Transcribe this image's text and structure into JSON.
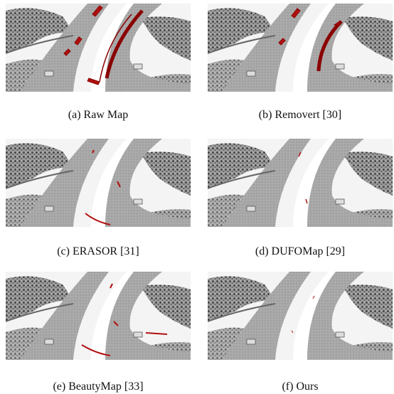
{
  "figure": {
    "panels": [
      {
        "caption": "(a) Raw Map"
      },
      {
        "caption": "(b) Removert [30]"
      },
      {
        "caption": "(c) ERASOR [31]"
      },
      {
        "caption": "(d) DUFOMap [29]"
      },
      {
        "caption": "(e) BeautyMap [33]"
      },
      {
        "caption": "(f) Ours"
      }
    ]
  }
}
